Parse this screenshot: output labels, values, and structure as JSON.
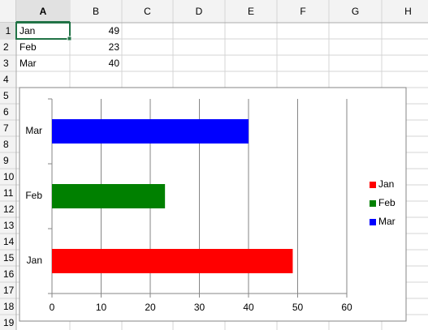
{
  "sheet": {
    "columns": [
      "A",
      "B",
      "C",
      "D",
      "E",
      "F",
      "G",
      "H"
    ],
    "rows": [
      "1",
      "2",
      "3",
      "4",
      "5",
      "6",
      "7",
      "8",
      "9",
      "10",
      "11",
      "12",
      "13",
      "14",
      "15",
      "16",
      "17",
      "18",
      "19"
    ],
    "cells": [
      [
        "Jan",
        49
      ],
      [
        "Feb",
        23
      ],
      [
        "Mar",
        40
      ]
    ]
  },
  "chart_data": {
    "type": "bar",
    "orientation": "horizontal",
    "categories": [
      "Jan",
      "Feb",
      "Mar"
    ],
    "values": [
      49,
      23,
      40
    ],
    "colors": [
      "#ff0000",
      "#008000",
      "#0000ff"
    ],
    "xlim": [
      0,
      60
    ],
    "xticks": [
      0,
      10,
      20,
      30,
      40,
      50,
      60
    ],
    "grid": true,
    "legend": "right"
  }
}
